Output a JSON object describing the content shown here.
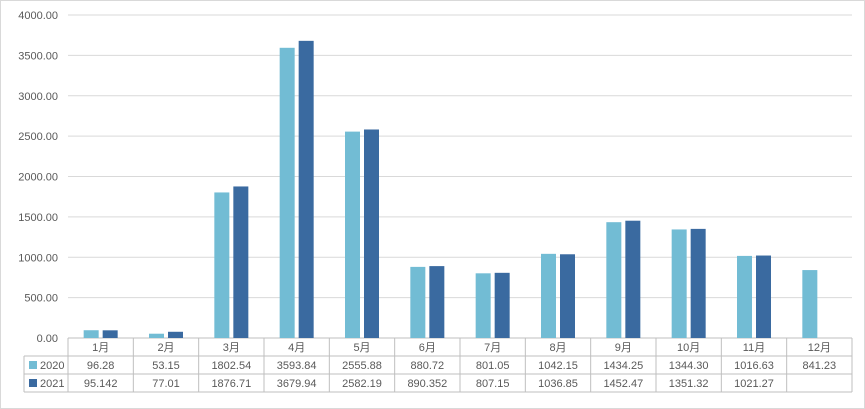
{
  "chart_data": {
    "type": "bar",
    "categories": [
      "1月",
      "2月",
      "3月",
      "4月",
      "5月",
      "6月",
      "7月",
      "8月",
      "9月",
      "10月",
      "11月",
      "12月"
    ],
    "series": [
      {
        "name": "2020",
        "color": "#72bcd4",
        "values": [
          96.28,
          53.15,
          1802.54,
          3593.84,
          2555.88,
          880.72,
          801.05,
          1042.15,
          1434.25,
          1344.3,
          1016.63,
          841.23
        ],
        "labels": [
          "96.28",
          "53.15",
          "1802.54",
          "3593.84",
          "2555.88",
          "880.72",
          "801.05",
          "1042.15",
          "1434.25",
          "1344.30",
          "1016.63",
          "841.23"
        ]
      },
      {
        "name": "2021",
        "color": "#3a6aa0",
        "values": [
          95.142,
          77.01,
          1876.71,
          3679.94,
          2582.19,
          890.352,
          807.15,
          1036.85,
          1452.47,
          1351.32,
          1021.27,
          null
        ],
        "labels": [
          "95.142",
          "77.01",
          "1876.71",
          "3679.94",
          "2582.19",
          "890.352",
          "807.15",
          "1036.85",
          "1452.47",
          "1351.32",
          "1021.27",
          ""
        ]
      }
    ],
    "yticks": [
      "0.00",
      "500.00",
      "1000.00",
      "1500.00",
      "2000.00",
      "2500.00",
      "3000.00",
      "3500.00",
      "4000.00"
    ],
    "ylim": [
      0,
      4000
    ],
    "grid": true,
    "legend": "data-table"
  }
}
